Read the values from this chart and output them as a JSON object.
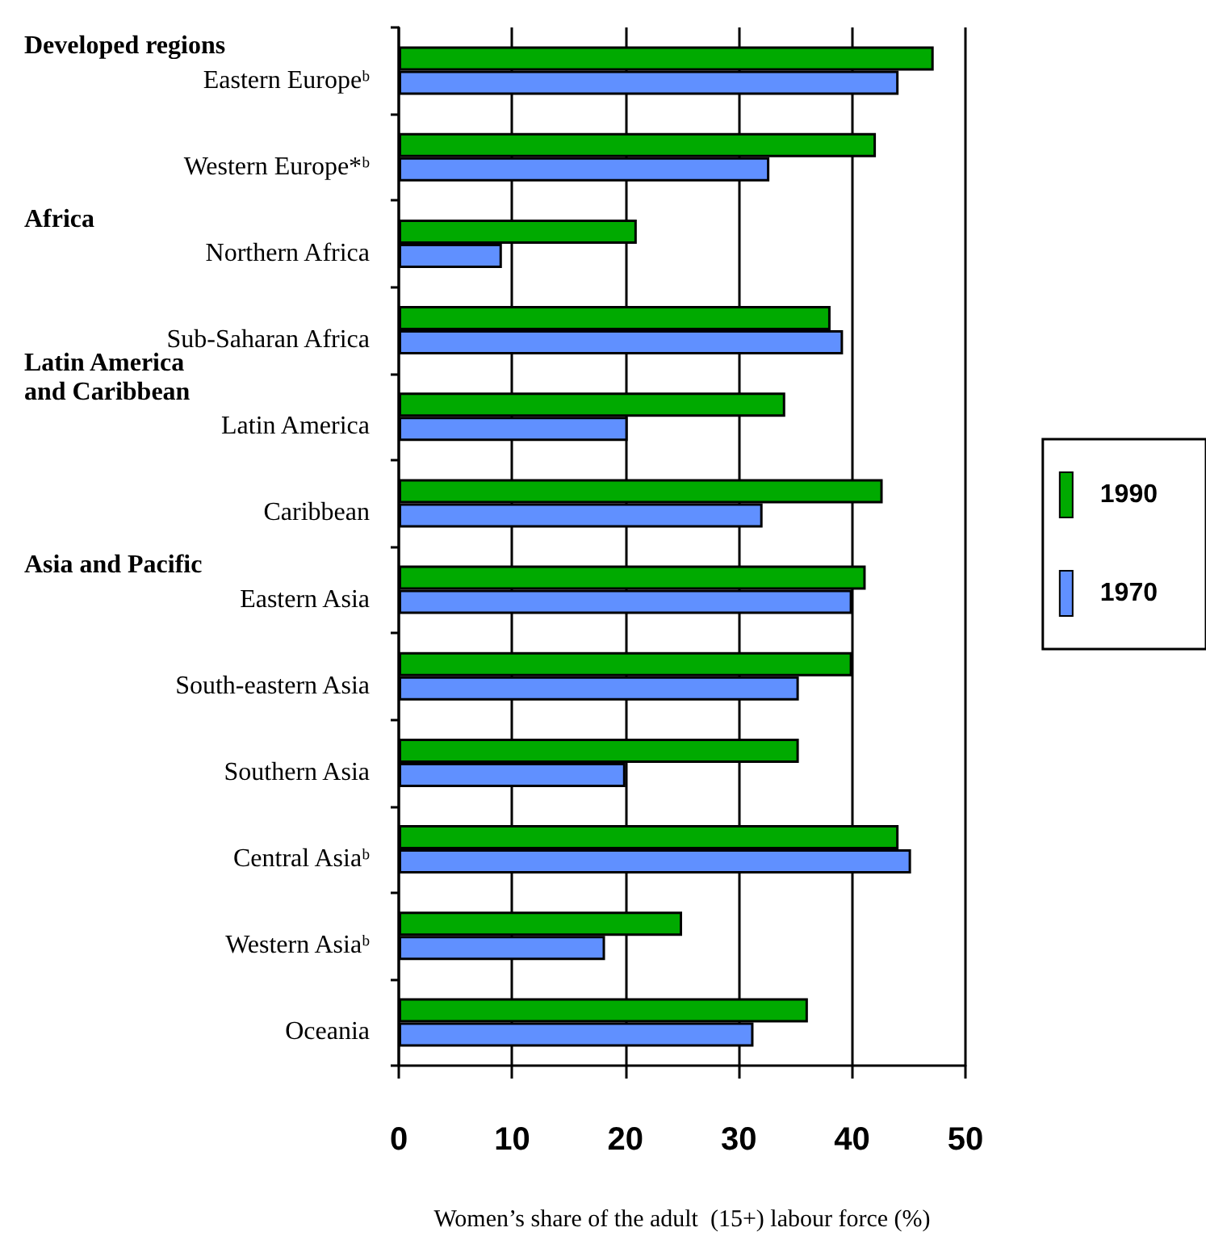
{
  "chart_data": {
    "type": "bar",
    "orientation": "horizontal",
    "xlabel": "Women’s share of the adult  (15+) labour force (%)",
    "categories": [
      "Eastern Europeᵇ",
      "Western Europe*ᵇ",
      "Northern Africa",
      "Sub-Saharan Africa",
      "Latin America",
      "Caribbean",
      "Eastern Asia",
      "South-eastern Asia",
      "Southern Asia",
      "Central Asiaᵇ",
      "Western Asiaᵇ",
      "Oceania"
    ],
    "series": [
      {
        "name": "1990",
        "color": "#00aa00",
        "values": [
          47.2,
          42.1,
          21,
          38.1,
          34.1,
          42.7,
          41.2,
          40,
          35.3,
          44.1,
          25,
          36.1
        ]
      },
      {
        "name": "1970",
        "color": "#6090ff",
        "values": [
          44.1,
          32.7,
          9.1,
          39.2,
          20.2,
          32.1,
          40,
          35.3,
          20,
          45.2,
          18.2,
          31.3
        ]
      }
    ],
    "xlim": [
      0,
      50
    ],
    "xticks": [
      0,
      10,
      20,
      30,
      40,
      50
    ],
    "grid": "x",
    "legend": "right",
    "annotations": [
      "Developed regions",
      "Africa",
      "Latin America\nand Caribbean",
      "Asia and Pacific"
    ]
  }
}
